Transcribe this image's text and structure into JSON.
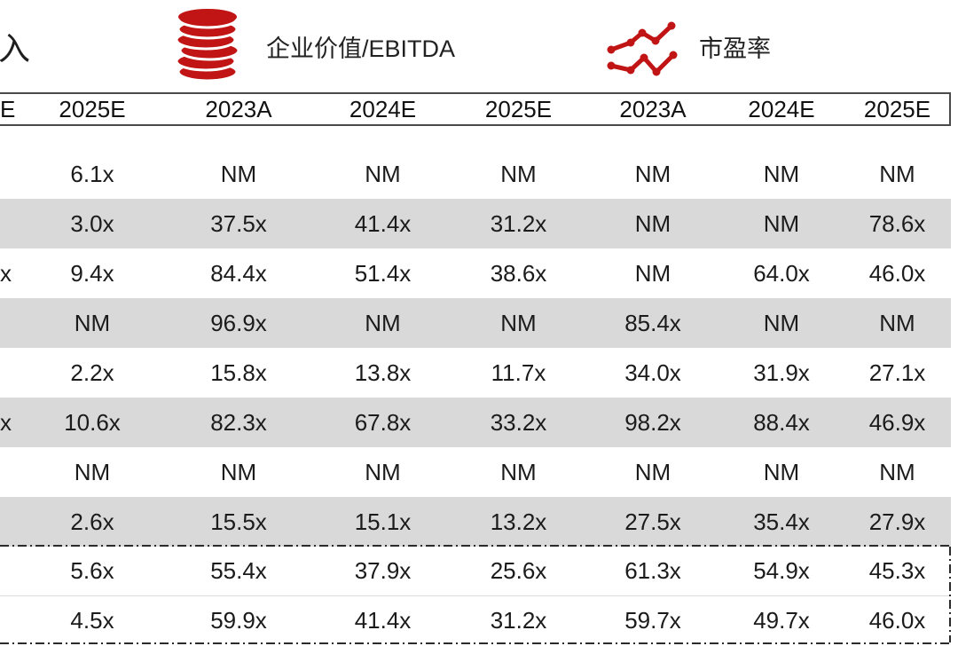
{
  "legend": {
    "revenue_label_fragment": "入",
    "ev_ebitda_label": "企业价值/EBITDA",
    "pe_label": "市盈率",
    "icons": [
      "coins-icon",
      "line-chart-icon"
    ]
  },
  "colors": {
    "accent_red": "#c11414",
    "row_shade": "#d9d9d9",
    "header_border": "#4a4a4a",
    "dash_line": "#2b2b2b",
    "text": "#1b1b1b"
  },
  "table": {
    "headers": [
      "E",
      "2025E",
      "2023A",
      "2024E",
      "2025E",
      "2023A",
      "2024E",
      "2025E"
    ],
    "rows": [
      [
        "",
        "6.1x",
        "NM",
        "NM",
        "NM",
        "NM",
        "NM",
        "NM"
      ],
      [
        "",
        "3.0x",
        "37.5x",
        "41.4x",
        "31.2x",
        "NM",
        "NM",
        "78.6x"
      ],
      [
        "x",
        "9.4x",
        "84.4x",
        "51.4x",
        "38.6x",
        "NM",
        "64.0x",
        "46.0x"
      ],
      [
        "",
        "NM",
        "96.9x",
        "NM",
        "NM",
        "85.4x",
        "NM",
        "NM"
      ],
      [
        "",
        "2.2x",
        "15.8x",
        "13.8x",
        "11.7x",
        "34.0x",
        "31.9x",
        "27.1x"
      ],
      [
        "x",
        "10.6x",
        "82.3x",
        "67.8x",
        "33.2x",
        "98.2x",
        "88.4x",
        "46.9x"
      ],
      [
        "",
        "NM",
        "NM",
        "NM",
        "NM",
        "NM",
        "NM",
        "NM"
      ],
      [
        "",
        "2.6x",
        "15.5x",
        "15.1x",
        "13.2x",
        "27.5x",
        "35.4x",
        "27.9x"
      ],
      [
        "",
        "5.6x",
        "55.4x",
        "37.9x",
        "25.6x",
        "61.3x",
        "54.9x",
        "45.3x"
      ],
      [
        "",
        "4.5x",
        "59.9x",
        "41.4x",
        "31.2x",
        "59.7x",
        "49.7x",
        "46.0x"
      ]
    ],
    "shaded": [
      false,
      true,
      false,
      true,
      false,
      true,
      false,
      true,
      false,
      false
    ]
  }
}
